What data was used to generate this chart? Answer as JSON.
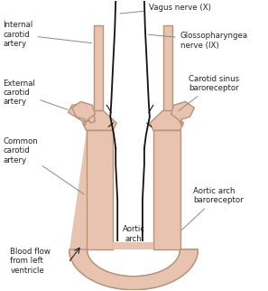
{
  "bg_color": "#ffffff",
  "artery_fill": "#e8c4b0",
  "artery_edge": "#b8927a",
  "nerve_color": "#111111",
  "label_color": "#222222",
  "line_color": "#888888",
  "labels": {
    "vagus": "Vagus nerve (X)",
    "glosso": "Glossopharyngea\nnerve (IX)",
    "carotid_sinus": "Carotid sinus\nbaroreceptor",
    "internal": "Internal\ncarotid\nartery",
    "external": "External\ncarotid\nartery",
    "common": "Common\ncarotid\nartery",
    "aortic_arch": "Aortic\narch",
    "aortic_baro": "Aortic arch\nbaroreceptor",
    "blood_flow": "Blood flow\nfrom left\nventricle"
  }
}
